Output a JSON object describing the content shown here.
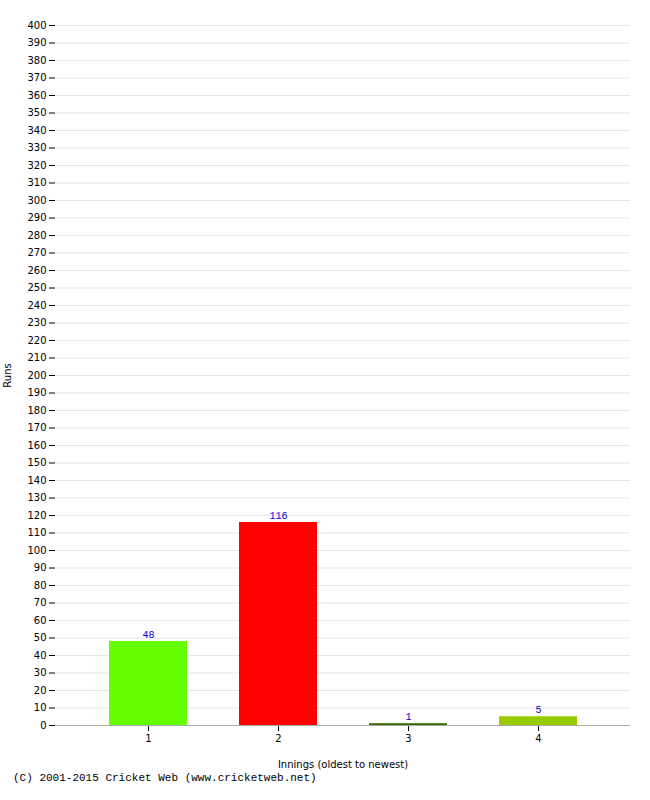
{
  "chart_data": {
    "type": "bar",
    "xlabel": "Innings (oldest to newest)",
    "ylabel": "Runs",
    "footnote": "(C) 2001-2015 Cricket Web (www.cricketweb.net)",
    "categories": [
      "1",
      "2",
      "3",
      "4"
    ],
    "values": [
      48,
      116,
      1,
      5
    ],
    "colors": [
      "#66ff00",
      "#ff0000",
      "#336600",
      "#99cc00"
    ],
    "ylim": [
      0,
      400
    ],
    "yticks": [
      0,
      10,
      20,
      30,
      40,
      50,
      60,
      70,
      80,
      90,
      100,
      110,
      120,
      130,
      140,
      150,
      160,
      170,
      180,
      190,
      200,
      210,
      220,
      230,
      240,
      250,
      260,
      270,
      280,
      290,
      300,
      310,
      320,
      330,
      340,
      350,
      360,
      370,
      380,
      390,
      400
    ],
    "grid": true,
    "data_labels": true
  }
}
